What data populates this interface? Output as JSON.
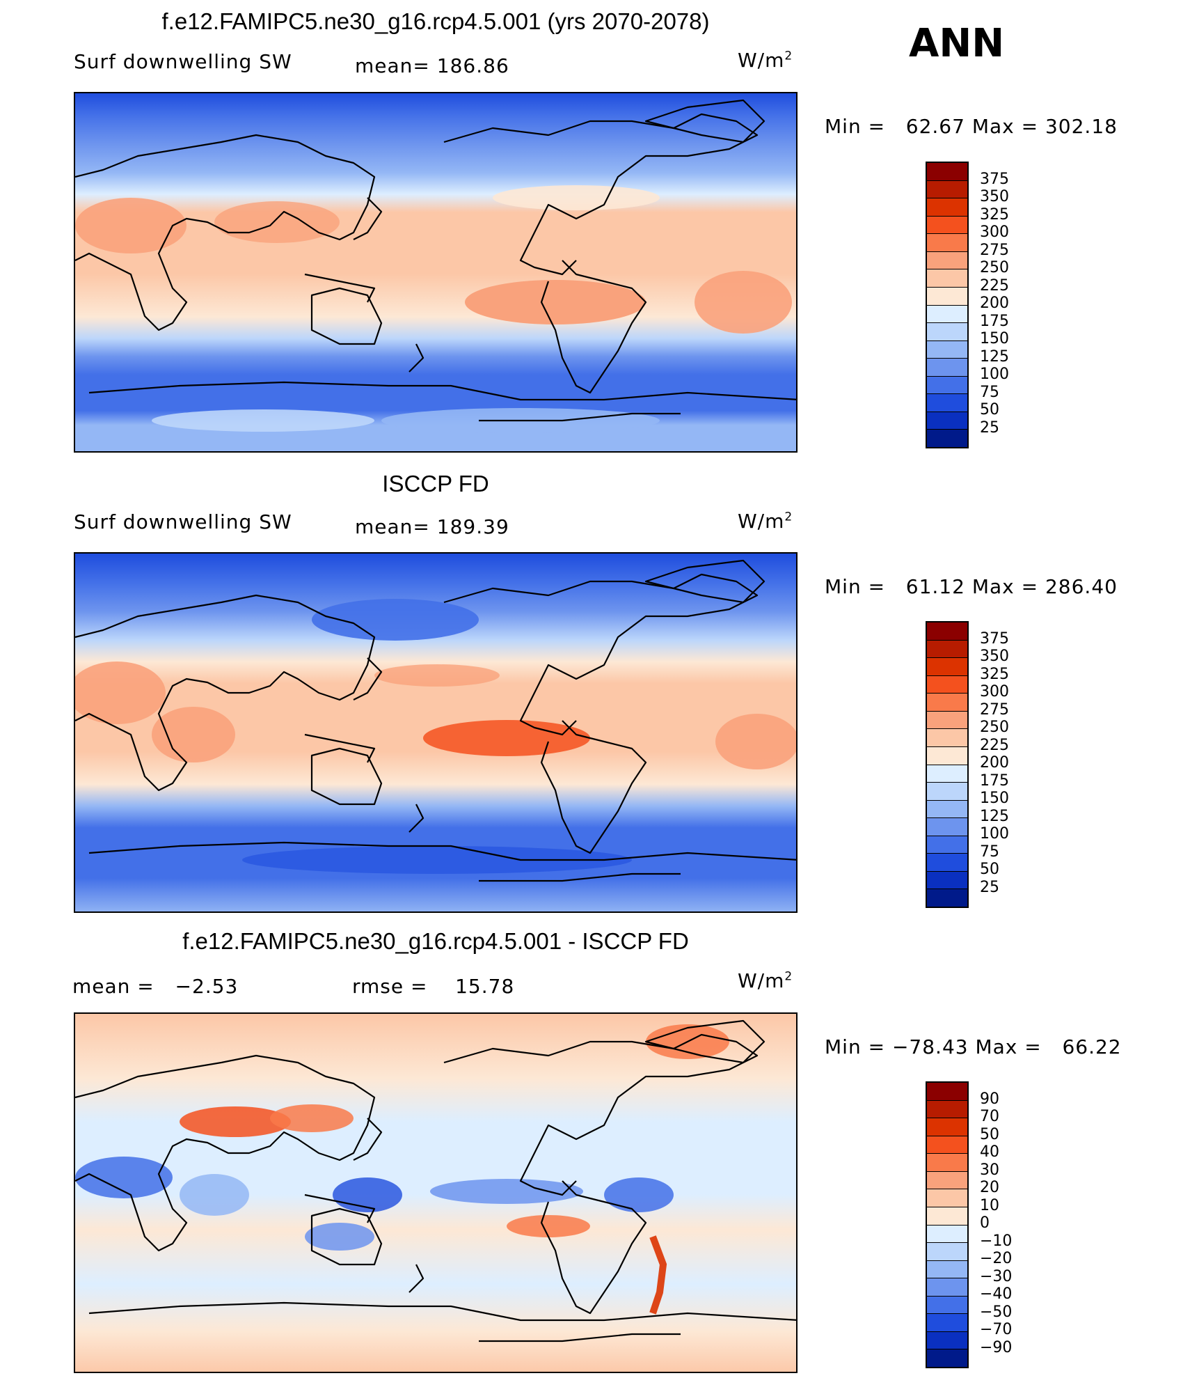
{
  "season": "ANN",
  "panels": [
    {
      "title": "f.e12.FAMIPC5.ne30_g16.rcp4.5.001 (yrs 2070-2078)",
      "left_label": "Surf  downwelling  SW",
      "stat_label": "mean=",
      "stat_value": "186.86",
      "stat2_label": "",
      "stat2_value": "",
      "units": "W/m",
      "units_exp": "2",
      "min_label": "Min  =",
      "min_value": "62.67",
      "max_label": "Max  =",
      "max_value": "302.18"
    },
    {
      "title": "ISCCP FD",
      "left_label": "Surf  downwelling  SW",
      "stat_label": "mean=",
      "stat_value": "189.39",
      "stat2_label": "",
      "stat2_value": "",
      "units": "W/m",
      "units_exp": "2",
      "min_label": "Min  =",
      "min_value": "61.12",
      "max_label": "Max  =",
      "max_value": "286.40"
    },
    {
      "title": "f.e12.FAMIPC5.ne30_g16.rcp4.5.001 - ISCCP FD",
      "left_label": "mean  =",
      "stat_label": "",
      "stat_value": "−2.53",
      "stat2_label": "rmse  =",
      "stat2_value": "15.78",
      "units": "W/m",
      "units_exp": "2",
      "min_label": "Min  =",
      "min_value": "−78.43",
      "max_label": "Max  =",
      "max_value": "66.22"
    }
  ],
  "chart_data": [
    {
      "type": "heatmap",
      "map": "global surface downwelling shortwave, model (annual mean)",
      "colorbar_levels": [
        "375",
        "350",
        "325",
        "300",
        "275",
        "250",
        "225",
        "200",
        "175",
        "150",
        "125",
        "100",
        "75",
        "50",
        "25"
      ],
      "colorbar_colors": [
        "#8b0000",
        "#b71c00",
        "#dc3300",
        "#f4511e",
        "#f97a4a",
        "#f9a27c",
        "#fcc7a7",
        "#fde8d5",
        "#ddeeff",
        "#bcd6fb",
        "#94b7f5",
        "#6d94ee",
        "#4370e8",
        "#1f4ddd",
        "#0a30c0",
        "#001a8a"
      ],
      "min": 62.67,
      "max": 302.18,
      "mean": 186.86
    },
    {
      "type": "heatmap",
      "map": "global surface downwelling shortwave, ISCCP FD (annual mean)",
      "colorbar_levels": [
        "375",
        "350",
        "325",
        "300",
        "275",
        "250",
        "225",
        "200",
        "175",
        "150",
        "125",
        "100",
        "75",
        "50",
        "25"
      ],
      "colorbar_colors": [
        "#8b0000",
        "#b71c00",
        "#dc3300",
        "#f4511e",
        "#f97a4a",
        "#f9a27c",
        "#fcc7a7",
        "#fde8d5",
        "#ddeeff",
        "#bcd6fb",
        "#94b7f5",
        "#6d94ee",
        "#4370e8",
        "#1f4ddd",
        "#0a30c0",
        "#001a8a"
      ],
      "min": 61.12,
      "max": 286.4,
      "mean": 189.39
    },
    {
      "type": "heatmap",
      "map": "difference model minus ISCCP FD",
      "colorbar_levels": [
        "90",
        "70",
        "50",
        "40",
        "30",
        "20",
        "10",
        "0",
        "−10",
        "−20",
        "−30",
        "−40",
        "−50",
        "−70",
        "−90"
      ],
      "colorbar_colors": [
        "#8b0000",
        "#b71c00",
        "#dc3300",
        "#f4511e",
        "#f97a4a",
        "#f9a27c",
        "#fcc7a7",
        "#fde8d5",
        "#ddeeff",
        "#bcd6fb",
        "#94b7f5",
        "#6d94ee",
        "#4370e8",
        "#1f4ddd",
        "#0a30c0",
        "#001a8a"
      ],
      "min": -78.43,
      "max": 66.22,
      "mean": -2.53,
      "rmse": 15.78
    }
  ]
}
